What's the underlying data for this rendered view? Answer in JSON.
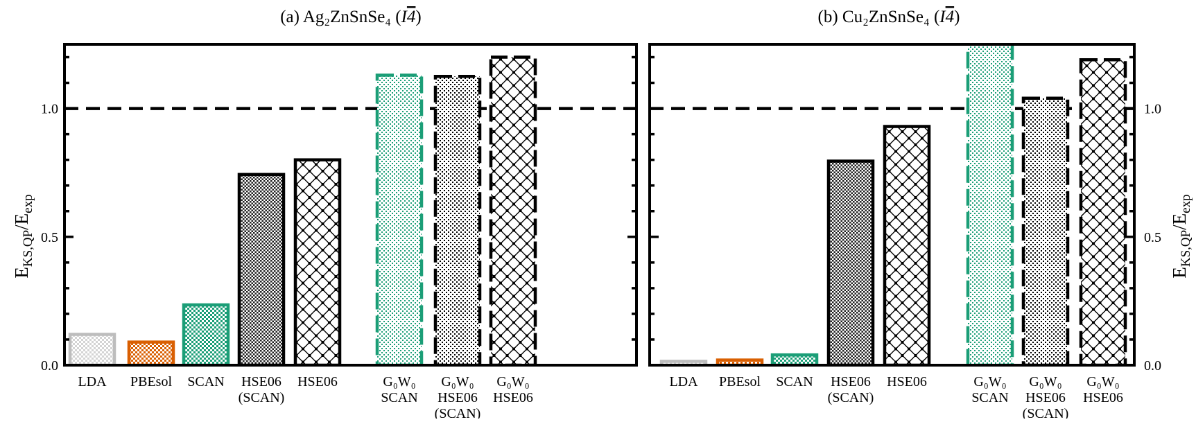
{
  "chart_data": [
    {
      "type": "bar",
      "title": {
        "prefix": "(a) Ag₂ZnSnSe₄ (",
        "group_letter": "I",
        "group_digit": "4",
        "suffix": ")"
      },
      "ylabel": {
        "main": "E",
        "sub": "KS,QP",
        "slash": "/E",
        "sub2": "exp"
      },
      "ylim": [
        0,
        1.25
      ],
      "yticks": [
        "0.0",
        "0.5",
        "1.0"
      ],
      "ytick_values": [
        0.0,
        0.5,
        1.0
      ],
      "minor_tick_step": 0.1,
      "yaxis_side": "left",
      "reference_line": 1.0,
      "categories": [
        [
          "LDA"
        ],
        [
          "PBEsol"
        ],
        [
          "SCAN"
        ],
        [
          "HSE06",
          "(SCAN)"
        ],
        [
          "HSE06"
        ],
        [
          "G₀W₀",
          "SCAN"
        ],
        [
          "G₀W₀",
          "HSE06",
          "(SCAN)"
        ],
        [
          "G₀W₀",
          "HSE06"
        ]
      ],
      "values": [
        0.12,
        0.09,
        0.235,
        0.743,
        0.8,
        1.13,
        1.125,
        1.2
      ]
    },
    {
      "type": "bar",
      "title": {
        "prefix": "(b) Cu₂ZnSnSe₄ (",
        "group_letter": "I",
        "group_digit": "4",
        "suffix": ")"
      },
      "ylabel": {
        "main": "E",
        "sub": "KS,QP",
        "slash": "/E",
        "sub2": "exp"
      },
      "ylim": [
        0,
        1.25
      ],
      "yticks": [
        "0.0",
        "0.5",
        "1.0"
      ],
      "ytick_values": [
        0.0,
        0.5,
        1.0
      ],
      "minor_tick_step": 0.1,
      "yaxis_side": "right",
      "reference_line": 1.0,
      "categories": [
        [
          "LDA"
        ],
        [
          "PBEsol"
        ],
        [
          "SCAN"
        ],
        [
          "HSE06",
          "(SCAN)"
        ],
        [
          "HSE06"
        ],
        [
          "G₀W₀",
          "SCAN"
        ],
        [
          "G₀W₀",
          "HSE06",
          "(SCAN)"
        ],
        [
          "G₀W₀",
          "HSE06"
        ]
      ],
      "values": [
        0.015,
        0.02,
        0.04,
        0.795,
        0.93,
        1.26,
        1.04,
        1.19
      ]
    }
  ],
  "bar_styles": [
    {
      "stroke": "#bdbdbd",
      "pattern": "dots-light",
      "dashed": false
    },
    {
      "stroke": "#d95f02",
      "pattern": "checker-orange",
      "dashed": false
    },
    {
      "stroke": "#1b9e77",
      "pattern": "checker-green",
      "dashed": false
    },
    {
      "stroke": "#000000",
      "pattern": "checker-black",
      "dashed": false
    },
    {
      "stroke": "#000000",
      "pattern": "lattice",
      "dashed": false
    },
    {
      "stroke": "#1b9e77",
      "pattern": "dots-green",
      "dashed": true
    },
    {
      "stroke": "#000000",
      "pattern": "dots-black",
      "dashed": true
    },
    {
      "stroke": "#000000",
      "pattern": "lattice",
      "dashed": true
    }
  ]
}
